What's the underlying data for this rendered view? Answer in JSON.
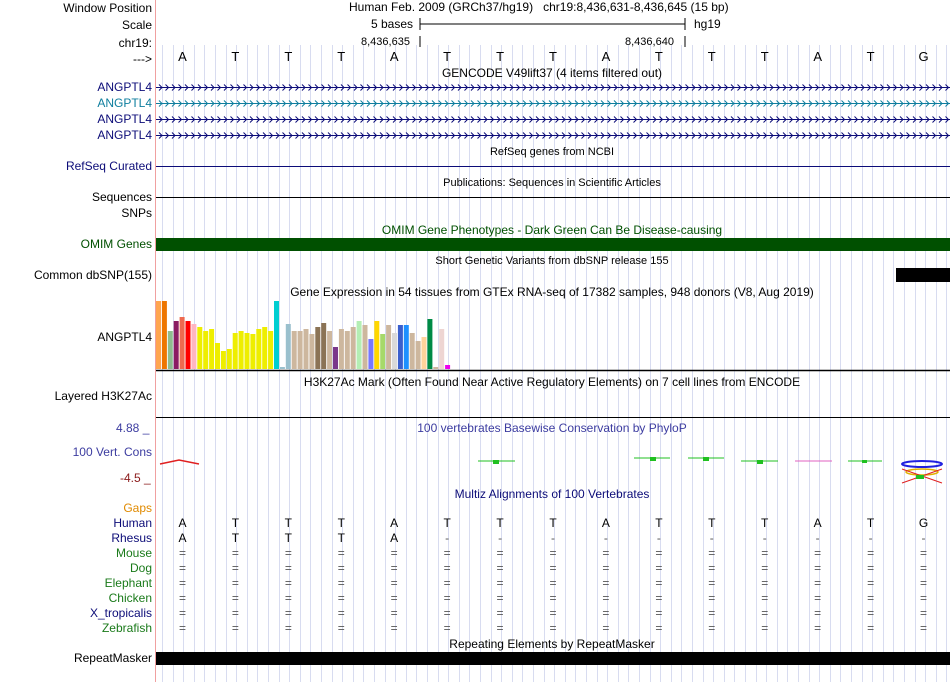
{
  "header": {
    "window_position_label": "Window Position",
    "scale_label": "Scale",
    "chrom_label": "chr19:",
    "strand_label": "--->",
    "position_text": "Human Feb. 2009 (GRCh37/hg19)   chr19:8,436,631-8,436,645 (15 bp)",
    "scale_text": "5 bases",
    "assembly": "hg19",
    "coord_left": "8,436,635",
    "coord_right": "8,436,640"
  },
  "bases": [
    "A",
    "T",
    "T",
    "T",
    "A",
    "T",
    "T",
    "T",
    "A",
    "T",
    "T",
    "T",
    "A",
    "T",
    "G"
  ],
  "gencode": {
    "title": "GENCODE V49lift37 (4 items filtered out)",
    "items": [
      "ANGPTL4",
      "ANGPTL4",
      "ANGPTL4",
      "ANGPTL4"
    ],
    "highlight_color": "#0e7e9e",
    "default_color": "#0c0c78"
  },
  "refseq": {
    "label": "RefSeq Curated",
    "title": "RefSeq genes from NCBI"
  },
  "publications": {
    "label_sequences": "Sequences",
    "title": "Publications: Sequences in Scientific Articles"
  },
  "snps": {
    "label": "SNPs"
  },
  "omim": {
    "label": "OMIM Genes",
    "title": "OMIM Gene Phenotypes - Dark Green Can Be Disease-causing",
    "color": "#005000"
  },
  "dbsnp": {
    "label": "Common dbSNP(155)",
    "title": "Short Genetic Variants from dbSNP release 155"
  },
  "gtex": {
    "label": "ANGPTL4",
    "title": "Gene Expression in 54 tissues from GTEx RNA-seq of 17382 samples, 948 donors (V8, Aug 2019)"
  },
  "h3k27ac": {
    "label": "Layered H3K27Ac",
    "title": "H3K27Ac Mark (Often Found Near Active Regulatory Elements) on 7 cell lines from ENCODE"
  },
  "phylop": {
    "label": "100 Vert. Cons",
    "max": "4.88 _",
    "min": "-4.5 _",
    "title": "100 vertebrates Basewise Conservation by PhyloP"
  },
  "multiz": {
    "title": "Multiz Alignments of 100 Vertebrates",
    "gaps_label": "Gaps",
    "species": [
      {
        "name": "Human",
        "seq": [
          "A",
          "T",
          "T",
          "T",
          "A",
          "T",
          "T",
          "T",
          "A",
          "T",
          "T",
          "T",
          "A",
          "T",
          "G"
        ]
      },
      {
        "name": "Rhesus",
        "seq": [
          "A",
          "T",
          "T",
          "T",
          "A",
          "-",
          "-",
          "-",
          "-",
          "-",
          "-",
          "-",
          "-",
          "-",
          "-"
        ]
      },
      {
        "name": "Mouse",
        "seq": [
          "=",
          "=",
          "=",
          "=",
          "=",
          "=",
          "=",
          "=",
          "=",
          "=",
          "=",
          "=",
          "=",
          "=",
          "="
        ]
      },
      {
        "name": "Dog",
        "seq": [
          "=",
          "=",
          "=",
          "=",
          "=",
          "=",
          "=",
          "=",
          "=",
          "=",
          "=",
          "=",
          "=",
          "=",
          "="
        ]
      },
      {
        "name": "Elephant",
        "seq": [
          "=",
          "=",
          "=",
          "=",
          "=",
          "=",
          "=",
          "=",
          "=",
          "=",
          "=",
          "=",
          "=",
          "=",
          "="
        ]
      },
      {
        "name": "Chicken",
        "seq": [
          "=",
          "=",
          "=",
          "=",
          "=",
          "=",
          "=",
          "=",
          "=",
          "=",
          "=",
          "=",
          "=",
          "=",
          "="
        ]
      },
      {
        "name": "X_tropicalis",
        "seq": [
          "=",
          "=",
          "=",
          "=",
          "=",
          "=",
          "=",
          "=",
          "=",
          "=",
          "=",
          "=",
          "=",
          "=",
          "="
        ]
      },
      {
        "name": "Zebrafish",
        "seq": [
          "=",
          "=",
          "=",
          "=",
          "=",
          "=",
          "=",
          "=",
          "=",
          "=",
          "=",
          "=",
          "=",
          "=",
          "="
        ]
      }
    ]
  },
  "repeatmasker": {
    "label": "RepeatMasker",
    "title": "Repeating Elements by RepeatMasker"
  }
}
